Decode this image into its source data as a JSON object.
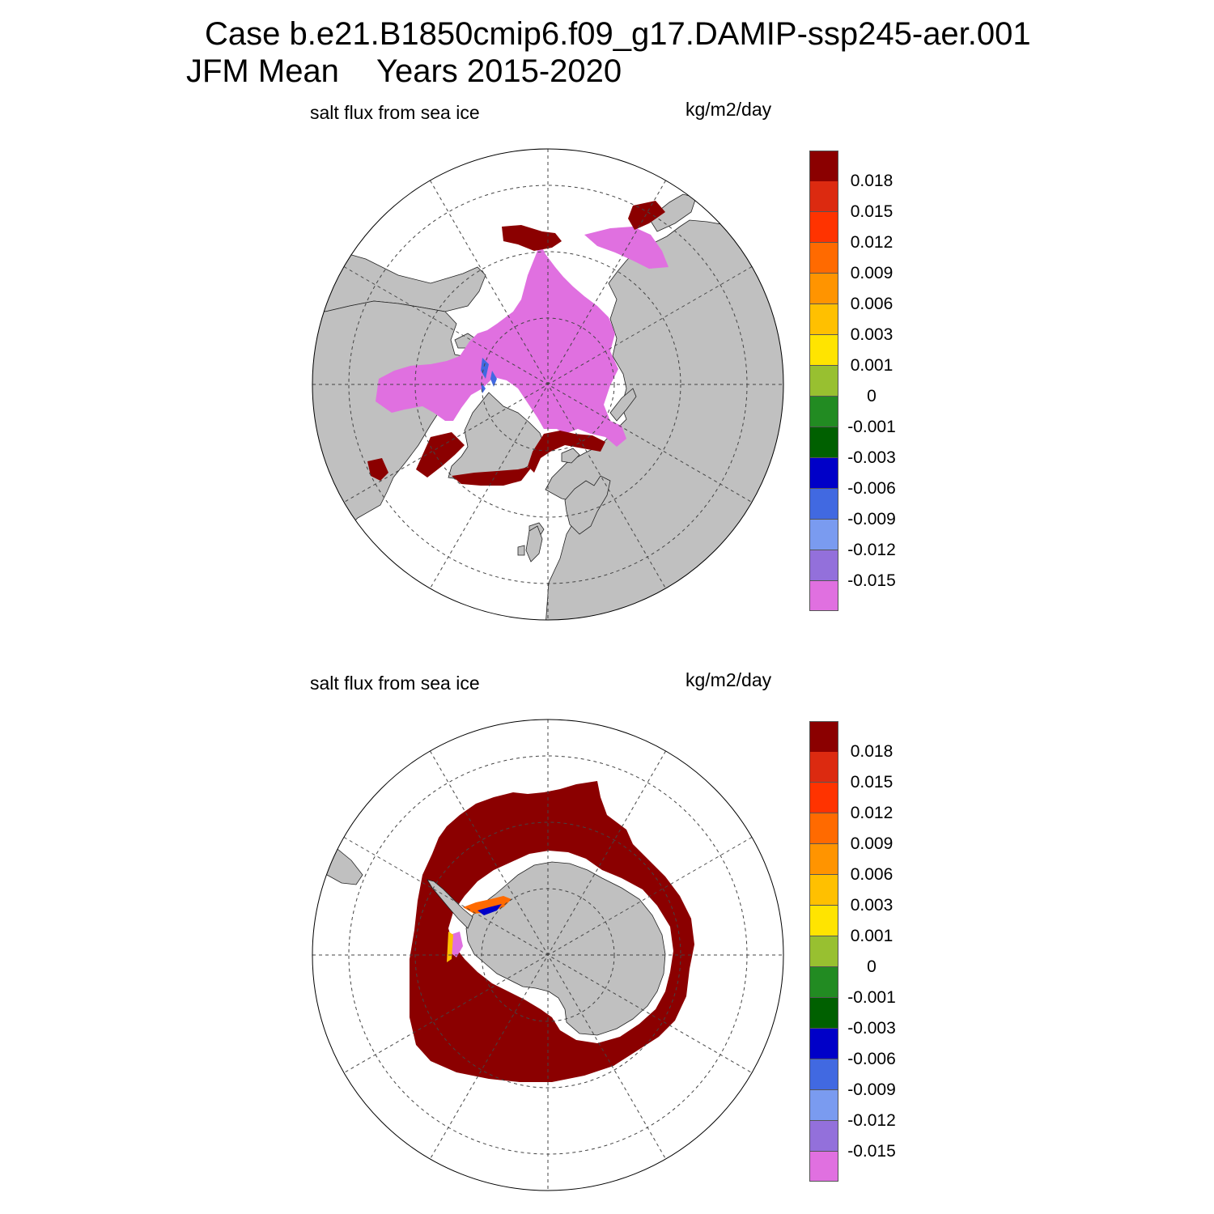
{
  "header": {
    "line1": "Case b.e21.B1850cmip6.f09_g17.DAMIP-ssp245-aer.001",
    "season": "JFM Mean",
    "years": "Years 2015-2020"
  },
  "panels": [
    {
      "hemisphere": "Arctic",
      "left_label": "salt flux from sea ice",
      "right_label": "kg/m2/day"
    },
    {
      "hemisphere": "Antarctic",
      "left_label": "salt flux from sea ice",
      "right_label": "kg/m2/day"
    }
  ],
  "colorbar": {
    "labels": [
      "0.018",
      "0.015",
      "0.012",
      "0.009",
      "0.006",
      "0.003",
      "0.001",
      "0",
      "-0.001",
      "-0.003",
      "-0.006",
      "-0.009",
      "-0.012",
      "-0.015"
    ],
    "colors": [
      "#8b0000",
      "#dc2a10",
      "#ff3300",
      "#ff6a00",
      "#ff9400",
      "#ffc000",
      "#ffe400",
      "#98c030",
      "#228b22",
      "#006000",
      "#0000c8",
      "#4169e1",
      "#7a9bf0",
      "#9370db",
      "#e070e0"
    ]
  },
  "colors": {
    "land": "#c0c0c0",
    "ocean": "#ffffff",
    "positive_flux": "#8b0000",
    "negative_flux": "#e070e0",
    "grid": "#444444"
  }
}
